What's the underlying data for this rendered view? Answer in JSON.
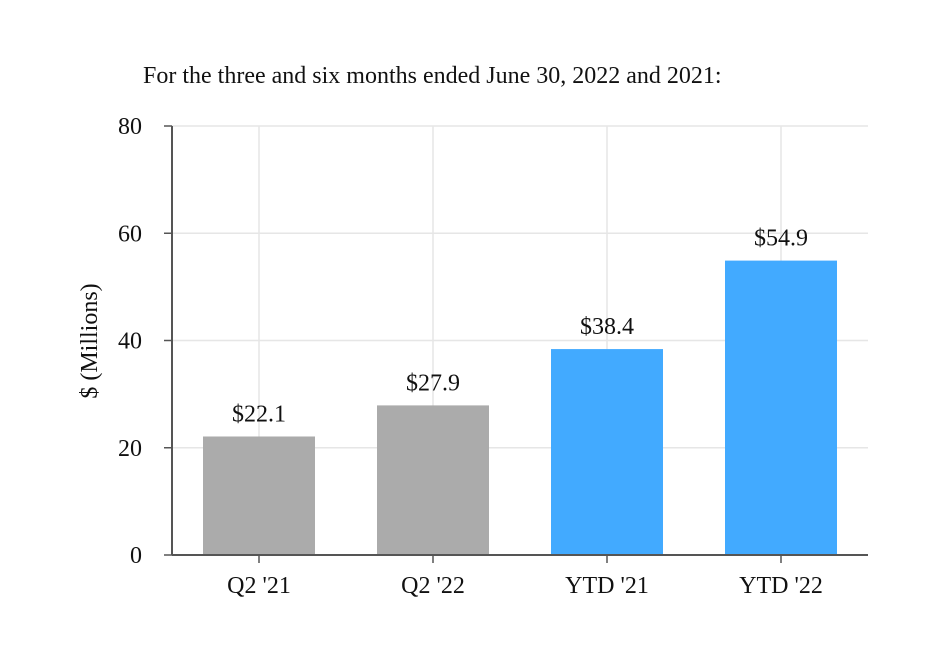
{
  "chart_data": {
    "type": "bar",
    "title": "For the three and six months ended June 30, 2022 and 2021:",
    "xlabel": "",
    "ylabel": "$ (Millions)",
    "categories": [
      "Q2 '21",
      "Q2 '22",
      "YTD '21",
      "YTD '22"
    ],
    "values": [
      22.1,
      27.9,
      38.4,
      54.9
    ],
    "data_labels": [
      "$22.1",
      "$27.9",
      "$38.4",
      "$54.9"
    ],
    "bar_colors": [
      "#ababab",
      "#ababab",
      "#42aaff",
      "#42aaff"
    ],
    "ylim": [
      0,
      80
    ],
    "yticks": [
      0,
      20,
      40,
      60,
      80
    ],
    "grid": true,
    "legend": "none"
  },
  "colors": {
    "grid": "#e6e6e6",
    "axis": "#555555",
    "text": "#111111"
  }
}
